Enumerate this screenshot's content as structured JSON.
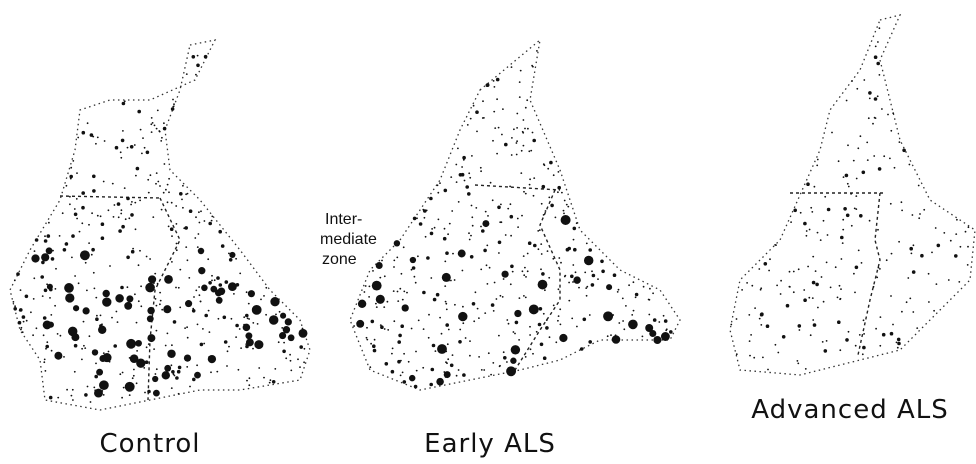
{
  "panels": [
    {
      "label": "Control"
    },
    {
      "label": "Early ALS"
    },
    {
      "label": "Advanced ALS"
    }
  ],
  "annotation": {
    "lines": [
      "Inter-",
      "mediate",
      "zone"
    ]
  }
}
